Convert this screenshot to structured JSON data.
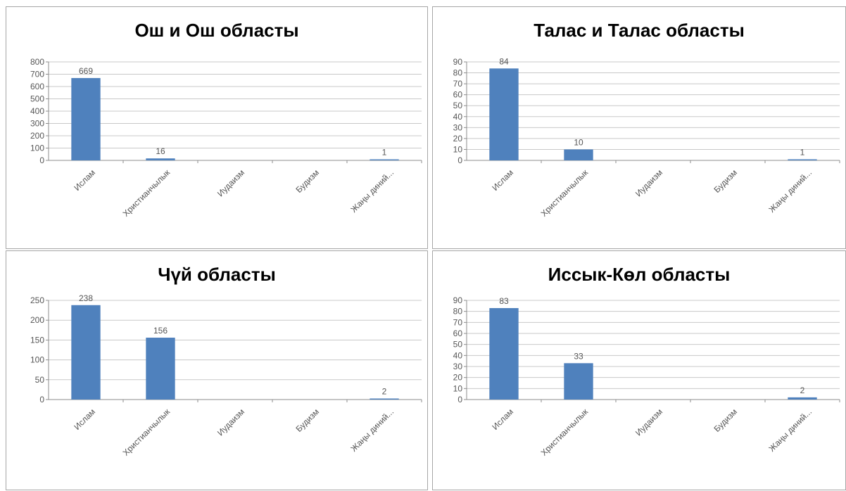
{
  "colors": {
    "bar": "#4f81bd",
    "grid": "#c8c8c8",
    "axis": "#8c8c8c",
    "text": "#555555"
  },
  "chart_data": [
    {
      "type": "bar",
      "title": "Ош и Ош областы",
      "categories": [
        "Ислам",
        "Христианчылык",
        "Иудаизм",
        "Будизм",
        "Жаңы диний..."
      ],
      "values": [
        669,
        16,
        null,
        null,
        1
      ],
      "yticks": [
        0,
        100,
        200,
        300,
        400,
        500,
        600,
        700,
        800
      ],
      "ylim": [
        0,
        800
      ],
      "grid": true
    },
    {
      "type": "bar",
      "title": "Талас и Талас областы",
      "categories": [
        "Ислам",
        "Христианчылык",
        "Иудаизм",
        "Будизм",
        "Жаңы диний..."
      ],
      "values": [
        84,
        10,
        null,
        null,
        1
      ],
      "yticks": [
        0,
        10,
        20,
        30,
        40,
        50,
        60,
        70,
        80,
        90
      ],
      "ylim": [
        0,
        90
      ],
      "grid": true
    },
    {
      "type": "bar",
      "title": "Чүй областы",
      "categories": [
        "Ислам",
        "Христианчылык",
        "Иудаизм",
        "Будизм",
        "Жаңы диний..."
      ],
      "values": [
        238,
        156,
        null,
        null,
        2
      ],
      "yticks": [
        0,
        50,
        100,
        150,
        200,
        250
      ],
      "ylim": [
        0,
        250
      ],
      "grid": true
    },
    {
      "type": "bar",
      "title": "Иссык-Көл областы",
      "categories": [
        "Ислам",
        "Христианчылык",
        "Иудаизм",
        "Будизм",
        "Жаңы диний..."
      ],
      "values": [
        83,
        33,
        null,
        null,
        2
      ],
      "yticks": [
        0,
        10,
        20,
        30,
        40,
        50,
        60,
        70,
        80,
        90
      ],
      "ylim": [
        0,
        90
      ],
      "grid": true
    }
  ]
}
